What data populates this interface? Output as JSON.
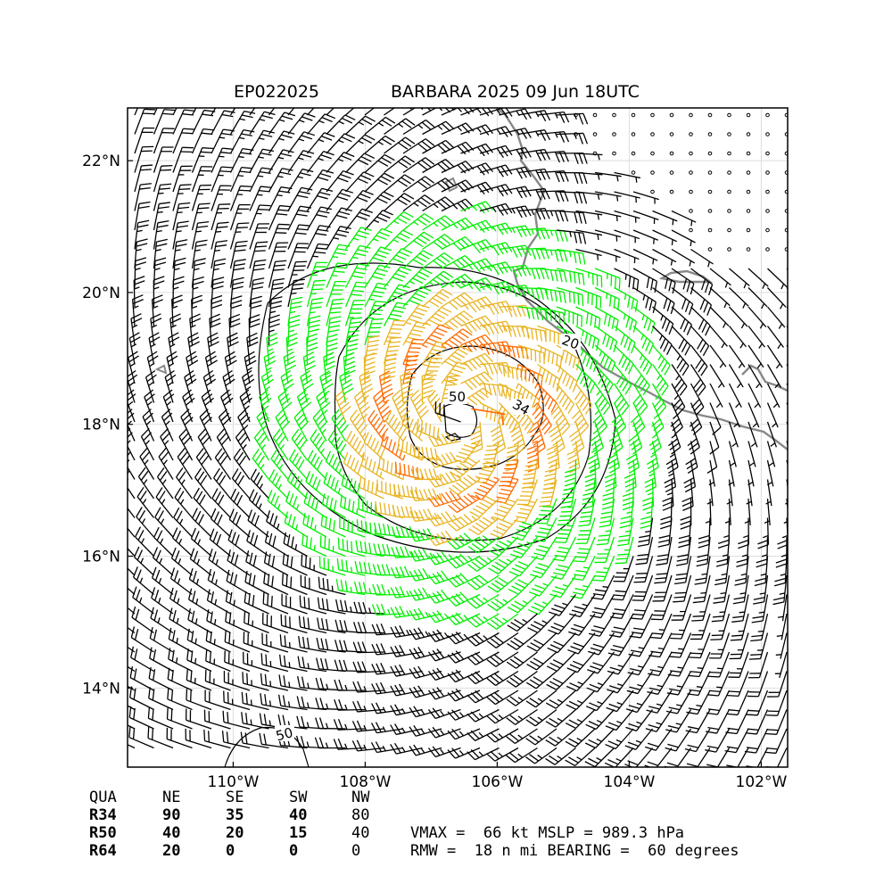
{
  "title": {
    "id": "EP022025",
    "storm": "BARBARA 2025 09 Jun 18UTC"
  },
  "map": {
    "lon_range": [
      -111.6,
      -101.6
    ],
    "lat_range": [
      12.8,
      22.8
    ],
    "lon_ticks": [
      {
        "lon": -110,
        "label": "110°W"
      },
      {
        "lon": -108,
        "label": "108°W"
      },
      {
        "lon": -106,
        "label": "106°W"
      },
      {
        "lon": -104,
        "label": "104°W"
      },
      {
        "lon": -102,
        "label": "102°W"
      }
    ],
    "lat_ticks": [
      {
        "lat": 14,
        "label": "14°N"
      },
      {
        "lat": 16,
        "label": "16°N"
      },
      {
        "lat": 18,
        "label": "18°N"
      },
      {
        "lat": 20,
        "label": "20°N"
      },
      {
        "lat": 22,
        "label": "22°N"
      }
    ],
    "center": {
      "lon": -106.5,
      "lat": 18.1
    },
    "contour_labels": [
      {
        "text": "20"
      },
      {
        "text": "34"
      },
      {
        "text": "50"
      },
      {
        "text": "50"
      }
    ],
    "colors": {
      "below34": "#000000",
      "r34": "#00ee00",
      "r50": "#e8b422",
      "r64": "#ff6a00",
      "coast": "#888888",
      "grid": "#dddddd"
    },
    "barbs": "wind barbs in knots; calm areas shown as circles"
  },
  "table": {
    "headers": [
      "QUA",
      "NE",
      "SE",
      "SW",
      "NW"
    ],
    "rows": [
      {
        "label": "R34",
        "values": [
          "90",
          "35",
          "40",
          "80"
        ]
      },
      {
        "label": "R50",
        "values": [
          "40",
          "20",
          "15",
          "40"
        ]
      },
      {
        "label": "R64",
        "values": [
          "20",
          "0",
          "0",
          "0"
        ]
      }
    ]
  },
  "summary": {
    "line1": "VMAX =  66 kt MSLP = 989.3 hPa",
    "line2": "RMW =  18 n mi BEARING =  60 degrees"
  }
}
